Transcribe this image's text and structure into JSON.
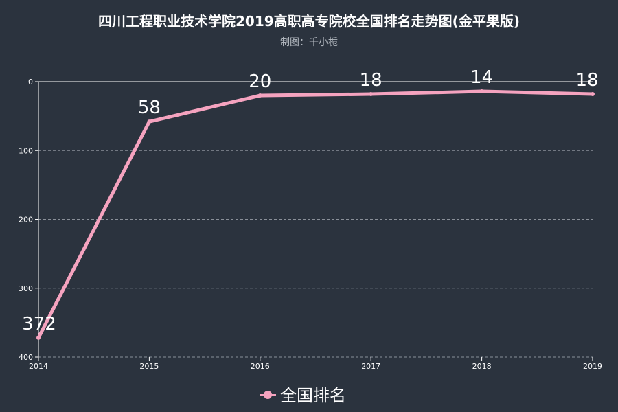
{
  "chart_data": {
    "type": "line",
    "title": "四川工程职业技术学院2019高职高专院校全国排名走势图(金平果版)",
    "subtitle": "制图：千小栀",
    "x": [
      "2014",
      "2015",
      "2016",
      "2017",
      "2018",
      "2019"
    ],
    "series": [
      {
        "name": "全国排名",
        "values": [
          372,
          58,
          20,
          18,
          14,
          18
        ]
      }
    ],
    "ylim": [
      0,
      400
    ],
    "yticks": [
      "0",
      "100",
      "200",
      "300",
      "400"
    ],
    "y_inverted": true,
    "grid": true,
    "legend": "bottom",
    "colors": {
      "background": "#2b333e",
      "line": "#f5a3bf",
      "text": "#ffffff",
      "grid": "#8a9099"
    }
  }
}
